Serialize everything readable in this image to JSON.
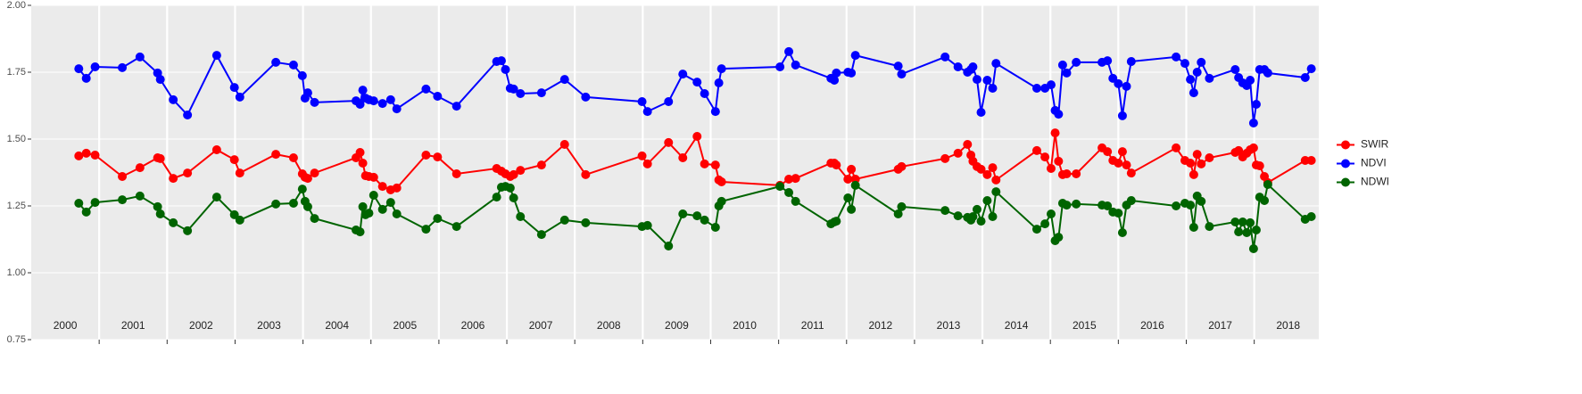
{
  "chart_data": {
    "type": "line",
    "x": [
      2000.7,
      2000.81,
      2000.94,
      2001.34,
      2001.6,
      2001.86,
      2001.9,
      2002.09,
      2002.3,
      2002.73,
      2002.99,
      2003.07,
      2003.6,
      2003.86,
      2003.99,
      2004.03,
      2004.07,
      2004.17,
      2004.78,
      2004.84,
      2004.88,
      2004.92,
      2004.97,
      2005.04,
      2005.17,
      2005.29,
      2005.38,
      2005.81,
      2005.98,
      2006.26,
      2006.85,
      2006.92,
      2006.98,
      2007.05,
      2007.1,
      2007.2,
      2007.51,
      2007.85,
      2008.16,
      2008.99,
      2009.07,
      2009.38,
      2009.59,
      2009.8,
      2009.91,
      2010.07,
      2010.12,
      2010.16,
      2011.02,
      2011.15,
      2011.25,
      2011.77,
      2011.82,
      2011.85,
      2012.02,
      2012.07,
      2012.13,
      2012.76,
      2012.81,
      2013.45,
      2013.64,
      2013.78,
      2013.83,
      2013.86,
      2013.92,
      2013.98,
      2014.07,
      2014.15,
      2014.2,
      2014.8,
      2014.92,
      2015.01,
      2015.07,
      2015.12,
      2015.18,
      2015.24,
      2015.38,
      2015.76,
      2015.84,
      2015.92,
      2016.0,
      2016.06,
      2016.12,
      2016.19,
      2016.85,
      2016.98,
      2017.06,
      2017.11,
      2017.16,
      2017.22,
      2017.34,
      2017.72,
      2017.77,
      2017.83,
      2017.89,
      2017.94,
      2017.99,
      2018.03,
      2018.08,
      2018.15,
      2018.2,
      2018.75,
      2018.84
    ],
    "series": [
      {
        "name": "SWIR",
        "color": "#ff0000",
        "values": [
          1.437,
          1.447,
          1.44,
          1.36,
          1.393,
          1.43,
          1.427,
          1.353,
          1.373,
          1.46,
          1.423,
          1.373,
          1.443,
          1.43,
          1.37,
          1.357,
          1.353,
          1.373,
          1.43,
          1.45,
          1.41,
          1.363,
          1.36,
          1.357,
          1.323,
          1.31,
          1.317,
          1.44,
          1.433,
          1.37,
          1.39,
          1.38,
          1.37,
          1.36,
          1.367,
          1.383,
          1.403,
          1.48,
          1.367,
          1.437,
          1.407,
          1.487,
          1.43,
          1.51,
          1.407,
          1.403,
          1.347,
          1.34,
          1.327,
          1.35,
          1.353,
          1.41,
          1.41,
          1.403,
          1.35,
          1.387,
          1.35,
          1.387,
          1.397,
          1.427,
          1.447,
          1.48,
          1.44,
          1.417,
          1.397,
          1.387,
          1.367,
          1.393,
          1.347,
          1.457,
          1.433,
          1.39,
          1.523,
          1.417,
          1.367,
          1.37,
          1.37,
          1.467,
          1.453,
          1.42,
          1.41,
          1.453,
          1.403,
          1.373,
          1.467,
          1.42,
          1.41,
          1.367,
          1.443,
          1.407,
          1.43,
          1.45,
          1.457,
          1.433,
          1.447,
          1.46,
          1.467,
          1.403,
          1.4,
          1.36,
          1.337,
          1.42,
          1.42
        ]
      },
      {
        "name": "NDVI",
        "color": "#0000ff",
        "values": [
          1.763,
          1.727,
          1.77,
          1.767,
          1.807,
          1.747,
          1.723,
          1.647,
          1.59,
          1.813,
          1.693,
          1.657,
          1.787,
          1.777,
          1.737,
          1.653,
          1.673,
          1.637,
          1.643,
          1.63,
          1.683,
          1.653,
          1.647,
          1.643,
          1.633,
          1.647,
          1.613,
          1.687,
          1.66,
          1.623,
          1.79,
          1.793,
          1.76,
          1.69,
          1.687,
          1.67,
          1.673,
          1.723,
          1.657,
          1.64,
          1.603,
          1.64,
          1.743,
          1.713,
          1.67,
          1.603,
          1.71,
          1.763,
          1.77,
          1.827,
          1.777,
          1.727,
          1.72,
          1.747,
          1.75,
          1.747,
          1.813,
          1.773,
          1.743,
          1.807,
          1.77,
          1.75,
          1.76,
          1.77,
          1.723,
          1.6,
          1.72,
          1.69,
          1.783,
          1.69,
          1.69,
          1.703,
          1.607,
          1.593,
          1.777,
          1.747,
          1.787,
          1.787,
          1.793,
          1.727,
          1.707,
          1.587,
          1.697,
          1.79,
          1.807,
          1.783,
          1.723,
          1.673,
          1.75,
          1.787,
          1.727,
          1.76,
          1.73,
          1.71,
          1.7,
          1.72,
          1.56,
          1.63,
          1.76,
          1.76,
          1.747,
          1.73,
          1.763
        ]
      },
      {
        "name": "NDWI",
        "color": "#006400",
        "values": [
          1.26,
          1.227,
          1.263,
          1.273,
          1.287,
          1.247,
          1.22,
          1.187,
          1.157,
          1.283,
          1.217,
          1.197,
          1.257,
          1.26,
          1.313,
          1.267,
          1.247,
          1.203,
          1.16,
          1.153,
          1.247,
          1.217,
          1.223,
          1.29,
          1.237,
          1.263,
          1.22,
          1.163,
          1.203,
          1.173,
          1.283,
          1.32,
          1.323,
          1.317,
          1.28,
          1.21,
          1.143,
          1.197,
          1.187,
          1.173,
          1.177,
          1.1,
          1.22,
          1.213,
          1.197,
          1.17,
          1.25,
          1.267,
          1.323,
          1.3,
          1.267,
          1.183,
          1.19,
          1.193,
          1.28,
          1.237,
          1.327,
          1.22,
          1.247,
          1.233,
          1.213,
          1.207,
          1.197,
          1.21,
          1.237,
          1.193,
          1.27,
          1.21,
          1.303,
          1.163,
          1.183,
          1.22,
          1.12,
          1.133,
          1.26,
          1.253,
          1.257,
          1.253,
          1.25,
          1.227,
          1.223,
          1.15,
          1.253,
          1.27,
          1.25,
          1.26,
          1.253,
          1.17,
          1.287,
          1.267,
          1.173,
          1.19,
          1.153,
          1.19,
          1.15,
          1.187,
          1.09,
          1.16,
          1.283,
          1.27,
          1.33,
          1.2,
          1.21
        ]
      }
    ],
    "xlim": [
      2000.0,
      2018.95
    ],
    "xticks": [
      2001,
      2002,
      2003,
      2004,
      2005,
      2006,
      2007,
      2008,
      2009,
      2010,
      2011,
      2012,
      2013,
      2014,
      2015,
      2016,
      2017,
      2018
    ],
    "year_labels": [
      {
        "value": 2000.5,
        "label": "2000"
      },
      {
        "value": 2001.5,
        "label": "2001"
      },
      {
        "value": 2002.5,
        "label": "2002"
      },
      {
        "value": 2003.5,
        "label": "2003"
      },
      {
        "value": 2004.5,
        "label": "2004"
      },
      {
        "value": 2005.5,
        "label": "2005"
      },
      {
        "value": 2006.5,
        "label": "2006"
      },
      {
        "value": 2007.5,
        "label": "2007"
      },
      {
        "value": 2008.5,
        "label": "2008"
      },
      {
        "value": 2009.5,
        "label": "2009"
      },
      {
        "value": 2010.5,
        "label": "2010"
      },
      {
        "value": 2011.5,
        "label": "2011"
      },
      {
        "value": 2012.5,
        "label": "2012"
      },
      {
        "value": 2013.5,
        "label": "2013"
      },
      {
        "value": 2014.5,
        "label": "2014"
      },
      {
        "value": 2015.5,
        "label": "2015"
      },
      {
        "value": 2016.5,
        "label": "2016"
      },
      {
        "value": 2017.5,
        "label": "2017"
      },
      {
        "value": 2018.5,
        "label": "2018"
      }
    ],
    "ylim": [
      0.75,
      2.0
    ],
    "yticks": [
      0.75,
      {
        "value": 1.0,
        "label": "1.00"
      },
      1.25,
      {
        "value": 1.5,
        "label": "1.50"
      },
      1.75,
      {
        "value": 2.0,
        "label": "2.00"
      }
    ],
    "grid": true,
    "legend": "right"
  }
}
